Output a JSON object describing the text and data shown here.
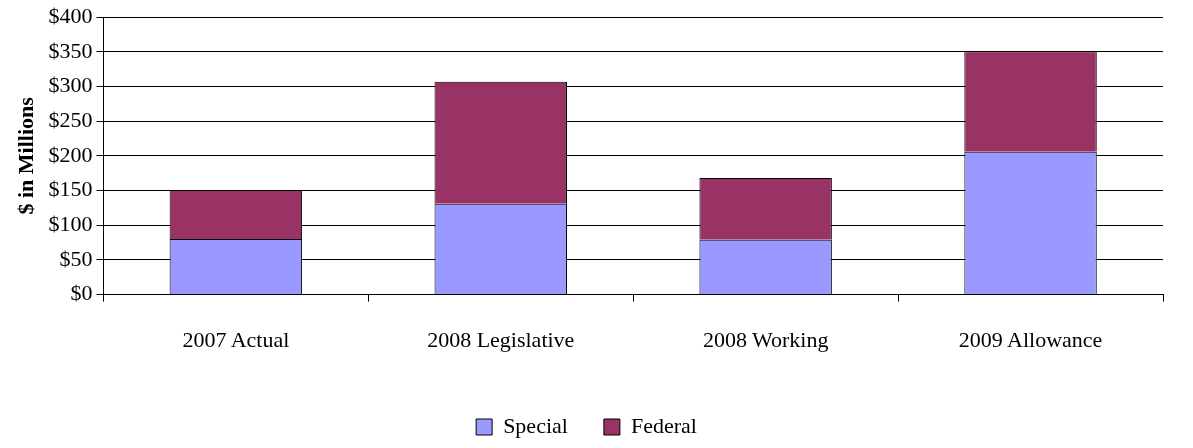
{
  "chart_data": {
    "type": "bar",
    "ylabel": "$ in Millions",
    "categories": [
      "2007 Actual",
      "2008 Legislative",
      "2008 Working",
      "2009 Allowance"
    ],
    "series": [
      {
        "name": "Special",
        "color": "#9999ff",
        "values": [
          80,
          131,
          79,
          206
        ]
      },
      {
        "name": "Federal",
        "color": "#993366",
        "values": [
          71,
          176,
          89,
          145
        ]
      }
    ],
    "stacked": true,
    "ylim": [
      0,
      400
    ],
    "yticks": [
      {
        "value": 0,
        "label": "$0"
      },
      {
        "value": 50,
        "label": "$50"
      },
      {
        "value": 100,
        "label": "$100"
      },
      {
        "value": 150,
        "label": "$150"
      },
      {
        "value": 200,
        "label": "$200"
      },
      {
        "value": 250,
        "label": "$250"
      },
      {
        "value": 300,
        "label": "$300"
      },
      {
        "value": 350,
        "label": "$350"
      },
      {
        "value": 400,
        "label": "$400"
      }
    ],
    "grid": "y",
    "legend": "bottom"
  }
}
